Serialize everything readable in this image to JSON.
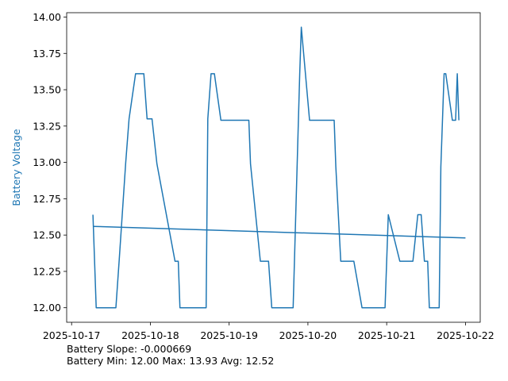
{
  "chart_data": {
    "type": "line",
    "title": "",
    "xlabel": "",
    "ylabel": "Battery Voltage",
    "ylabel_color": "#1f77b4",
    "xlim": [
      "2025-10-16 22:30",
      "2025-10-22 04:30"
    ],
    "ylim": [
      11.9,
      14.03
    ],
    "x_ticks": [
      "2025-10-17",
      "2025-10-18",
      "2025-10-19",
      "2025-10-20",
      "2025-10-21",
      "2025-10-22"
    ],
    "y_ticks": [
      12.0,
      12.25,
      12.5,
      12.75,
      13.0,
      13.25,
      13.5,
      13.75,
      14.0
    ],
    "y_tick_labels": [
      "12.00",
      "12.25",
      "12.50",
      "12.75",
      "13.00",
      "13.25",
      "13.50",
      "13.75",
      "14.00"
    ],
    "grid": false,
    "series": [
      {
        "color": "#1f77b4",
        "x": [
          "2025-10-17 06:30",
          "2025-10-17 07:30",
          "2025-10-17 09:30",
          "2025-10-17 11:30",
          "2025-10-17 13:30",
          "2025-10-17 14:30",
          "2025-10-17 16:30",
          "2025-10-17 17:30",
          "2025-10-17 19:30",
          "2025-10-17 20:00",
          "2025-10-17 21:30",
          "2025-10-17 22:00",
          "2025-10-17 23:00",
          "2025-10-18 00:30",
          "2025-10-18 02:00",
          "2025-10-18 07:30",
          "2025-10-18 08:00",
          "2025-10-18 08:30",
          "2025-10-18 09:00",
          "2025-10-18 09:30",
          "2025-10-18 10:30",
          "2025-10-18 13:30",
          "2025-10-18 14:00",
          "2025-10-18 17:00",
          "2025-10-18 17:30",
          "2025-10-18 18:30",
          "2025-10-18 19:30",
          "2025-10-18 21:30",
          "2025-10-19 00:30",
          "2025-10-19 01:30",
          "2025-10-19 02:00",
          "2025-10-19 06:00",
          "2025-10-19 06:30",
          "2025-10-19 09:30",
          "2025-10-19 10:00",
          "2025-10-19 11:00",
          "2025-10-19 12:00",
          "2025-10-19 13:00",
          "2025-10-19 14:30",
          "2025-10-19 16:30",
          "2025-10-19 17:00",
          "2025-10-19 18:00",
          "2025-10-19 18:30",
          "2025-10-19 19:30",
          "2025-10-19 21:30",
          "2025-10-19 22:00",
          "2025-10-20 00:30",
          "2025-10-20 01:00",
          "2025-10-20 06:00",
          "2025-10-20 06:30",
          "2025-10-20 08:00",
          "2025-10-20 08:30",
          "2025-10-20 10:00",
          "2025-10-20 13:30",
          "2025-10-20 14:00",
          "2025-10-20 16:30",
          "2025-10-20 17:00",
          "2025-10-20 17:30",
          "2025-10-20 18:30",
          "2025-10-20 19:00",
          "2025-10-20 23:30",
          "2025-10-21 00:30",
          "2025-10-21 04:00",
          "2025-10-21 04:30",
          "2025-10-21 06:00",
          "2025-10-21 08:00",
          "2025-10-21 09:30",
          "2025-10-21 10:30",
          "2025-10-21 11:30",
          "2025-10-21 12:30",
          "2025-10-21 13:00",
          "2025-10-21 14:00",
          "2025-10-21 15:00",
          "2025-10-21 15:30",
          "2025-10-21 16:00",
          "2025-10-21 16:30",
          "2025-10-21 17:30",
          "2025-10-21 18:00",
          "2025-10-21 20:00",
          "2025-10-21 21:00",
          "2025-10-21 21:30",
          "2025-10-21 22:00"
        ],
        "y": [
          12.64,
          12.0,
          12.0,
          12.0,
          12.0,
          12.33,
          13.0,
          13.3,
          13.61,
          13.61,
          13.61,
          13.61,
          13.3,
          13.3,
          12.99,
          12.32,
          12.32,
          12.32,
          12.0,
          12.0,
          12.0,
          12.0,
          12.0,
          12.0,
          13.3,
          13.61,
          13.61,
          13.29,
          13.29,
          13.29,
          13.29,
          13.29,
          12.99,
          12.32,
          12.32,
          12.32,
          12.32,
          12.0,
          12.0,
          12.0,
          12.0,
          12.0,
          12.0,
          12.0,
          13.61,
          13.93,
          13.29,
          13.29,
          13.29,
          13.29,
          13.29,
          12.97,
          12.32,
          12.32,
          12.32,
          12.0,
          12.0,
          12.0,
          12.0,
          12.0,
          12.0,
          12.64,
          12.32,
          12.32,
          12.32,
          12.32,
          12.64,
          12.64,
          12.32,
          12.32,
          12.0,
          12.0,
          12.0,
          12.0,
          12.0,
          12.97,
          13.61,
          13.61,
          13.29,
          13.29,
          13.61,
          13.29
        ]
      },
      {
        "color": "#1f77b4",
        "x": [
          "2025-10-17 06:30",
          "2025-10-22 00:00"
        ],
        "y": [
          12.56,
          12.48
        ]
      }
    ]
  },
  "stats": {
    "line1": "Battery Slope: -0.000669",
    "line2": "Battery Min: 12.00 Max: 13.93 Avg: 12.52"
  }
}
